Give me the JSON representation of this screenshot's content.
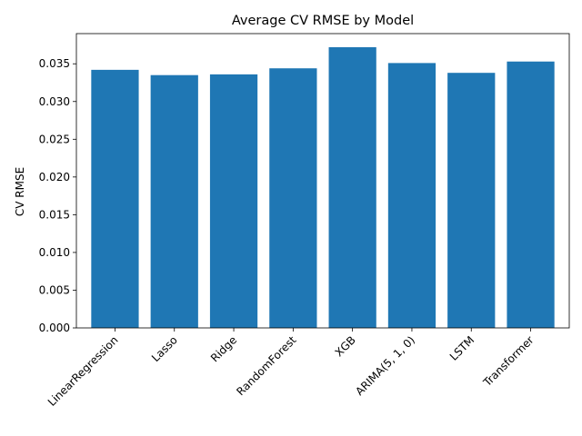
{
  "chart_data": {
    "type": "bar",
    "title": "Average CV RMSE by Model",
    "xlabel": "",
    "ylabel": "CV RMSE",
    "categories": [
      "LinearRegression",
      "Lasso",
      "Ridge",
      "RandomForest",
      "XGB",
      "ARIMA(5, 1, 0)",
      "LSTM",
      "Transformer"
    ],
    "values": [
      0.0342,
      0.0335,
      0.0336,
      0.0344,
      0.0372,
      0.0351,
      0.0338,
      0.0353
    ],
    "ylim": [
      0,
      0.039
    ],
    "yticks": [
      "0.000",
      "0.005",
      "0.010",
      "0.015",
      "0.020",
      "0.025",
      "0.030",
      "0.035"
    ],
    "bar_color": "#1f77b4",
    "grid": false
  }
}
